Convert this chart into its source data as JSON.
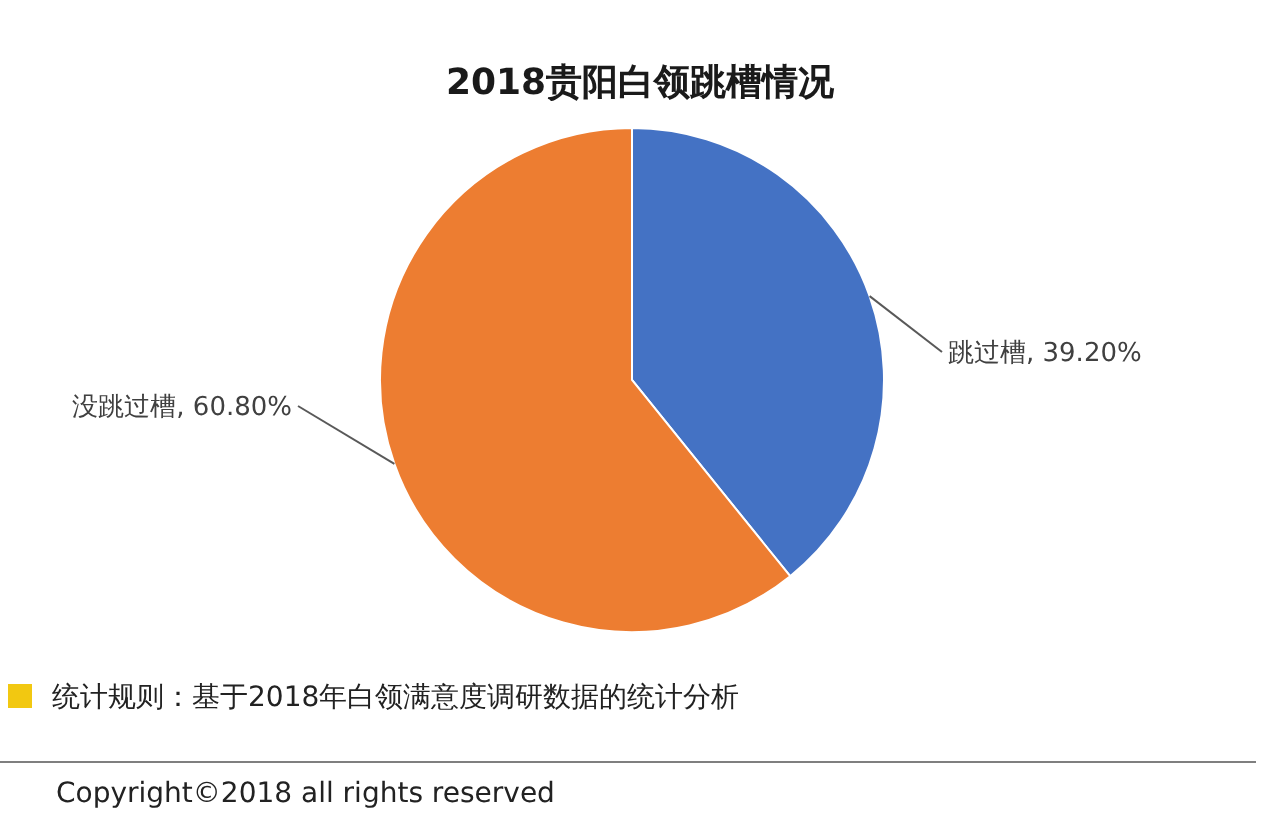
{
  "chart_data": {
    "type": "pie",
    "title": "2018贵阳白领跳槽情况",
    "categories": [
      "跳过槽",
      "没跳过槽"
    ],
    "values": [
      39.2,
      60.8
    ],
    "colors": [
      "#4472c4",
      "#ed7d31"
    ],
    "value_labels": [
      "39.20%",
      "60.80%"
    ],
    "annotations": [
      "统计规则：基于2018年白领满意度调研数据的统计分析",
      "Copyright©2018 all rights reserved"
    ]
  }
}
